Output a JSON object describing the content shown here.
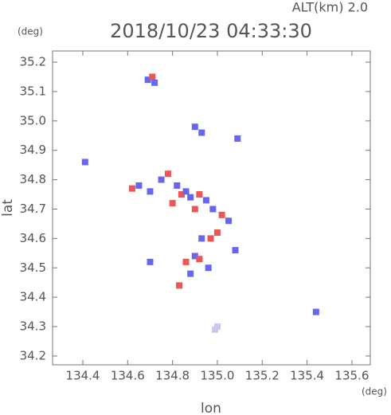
{
  "chart_data": {
    "type": "scatter",
    "title": "2018/10/23 04:33:30",
    "subtitle": "ALT(km) 2.0",
    "xlabel": "lon",
    "ylabel": "lat",
    "xunit": "(deg)",
    "yunit": "(deg)",
    "xlim": [
      134.265,
      135.682
    ],
    "ylim": [
      34.17,
      35.238
    ],
    "xticks": [
      134.4,
      134.6,
      134.8,
      {
        "value": 135,
        "label": "135.0"
      },
      135.2,
      135.4,
      135.6
    ],
    "yticks": [
      34.2,
      34.3,
      34.4,
      34.5,
      34.6,
      34.7,
      34.8,
      34.9,
      {
        "value": 35,
        "label": "35.0"
      },
      35.1,
      35.2
    ],
    "x": [
      134.69,
      134.71,
      134.72,
      134.9,
      134.93,
      135.09,
      134.41,
      134.62,
      134.65,
      134.7,
      134.75,
      134.78,
      134.82,
      134.84,
      134.86,
      134.8,
      134.88,
      134.92,
      134.95,
      134.9,
      134.98,
      135.02,
      135.05,
      135.0,
      134.93,
      134.97,
      135.08,
      134.7,
      134.86,
      134.9,
      134.92,
      134.96,
      134.88,
      134.83,
      134.99,
      135.0,
      135.44
    ],
    "values": [
      35.14,
      35.15,
      35.13,
      34.98,
      34.96,
      34.94,
      34.86,
      34.77,
      34.78,
      34.76,
      34.8,
      34.82,
      34.78,
      34.75,
      34.76,
      34.72,
      34.74,
      34.75,
      34.73,
      34.7,
      34.7,
      34.68,
      34.66,
      34.62,
      34.6,
      34.6,
      34.56,
      34.52,
      34.52,
      34.54,
      34.53,
      34.5,
      34.48,
      34.44,
      34.29,
      34.3,
      34.35
    ],
    "colors": [
      "#6666ee",
      "#ee5555",
      "#6666ee",
      "#6666ee",
      "#6666ee",
      "#6666ee",
      "#6666ee",
      "#ee5555",
      "#6666ee",
      "#6666ee",
      "#6666ee",
      "#ee5555",
      "#6666ee",
      "#ee5555",
      "#6666ee",
      "#ee5555",
      "#6666ee",
      "#ee5555",
      "#6666ee",
      "#ee5555",
      "#6666ee",
      "#ee5555",
      "#6666ee",
      "#ee5555",
      "#6666ee",
      "#ee5555",
      "#6666ee",
      "#6666ee",
      "#ee5555",
      "#6666ee",
      "#ee5555",
      "#6666ee",
      "#6666ee",
      "#ee5555",
      "#c8c8f0",
      "#c8c8f0",
      "#6666ee"
    ]
  }
}
